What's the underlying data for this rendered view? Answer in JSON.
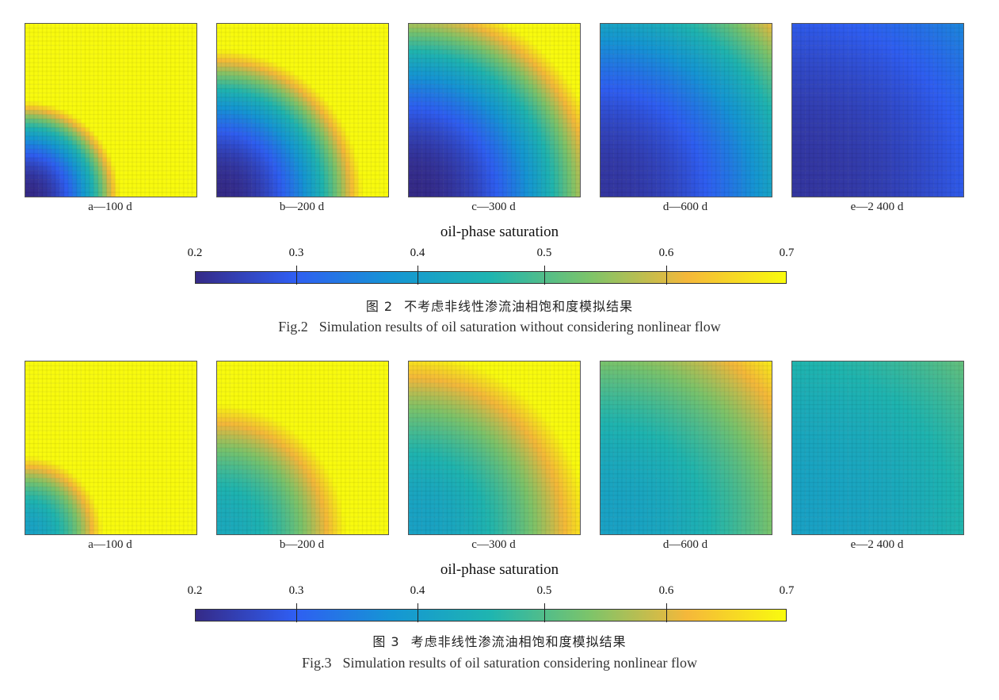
{
  "colormap": {
    "title": "oil-phase saturation",
    "ticks": [
      "0.2",
      "0.3",
      "0.4",
      "0.5",
      "0.6",
      "0.7"
    ],
    "colors": [
      "#352a87",
      "#2f5ef2",
      "#1596d4",
      "#1fb5b0",
      "#7cc46a",
      "#f5b83a",
      "#f9fb0e"
    ]
  },
  "figures": [
    {
      "id": "fig2",
      "caption_cn_num": "图 2",
      "caption_cn_text": "不考虑非线性渗流油相饱和度模拟结果",
      "caption_en_num": "Fig.2",
      "caption_en_text": "Simulation results of oil saturation without considering nonlinear flow",
      "panels": [
        {
          "label": "a—100 d",
          "front_radius": 0.55,
          "min_saturation": 0.2
        },
        {
          "label": "b—200 d",
          "front_radius": 0.85,
          "min_saturation": 0.2
        },
        {
          "label": "c—300 d",
          "front_radius": 1.15,
          "min_saturation": 0.2
        },
        {
          "label": "d—600 d",
          "front_radius": 1.55,
          "min_saturation": 0.22
        },
        {
          "label": "e—2 400 d",
          "front_radius": 2.6,
          "min_saturation": 0.22
        }
      ]
    },
    {
      "id": "fig3",
      "caption_cn_num": "图 3",
      "caption_cn_text": "考虑非线性渗流油相饱和度模拟结果",
      "caption_en_num": "Fig.3",
      "caption_en_text": "Simulation results of oil saturation considering nonlinear flow",
      "panels": [
        {
          "label": "a—100 d",
          "front_radius": 0.45,
          "min_saturation": 0.4
        },
        {
          "label": "b—200 d",
          "front_radius": 0.75,
          "min_saturation": 0.42
        },
        {
          "label": "c—300 d",
          "front_radius": 1.05,
          "min_saturation": 0.4
        },
        {
          "label": "d—600 d",
          "front_radius": 1.45,
          "min_saturation": 0.4
        },
        {
          "label": "e—2 400 d",
          "front_radius": 2.2,
          "min_saturation": 0.4
        }
      ]
    }
  ]
}
